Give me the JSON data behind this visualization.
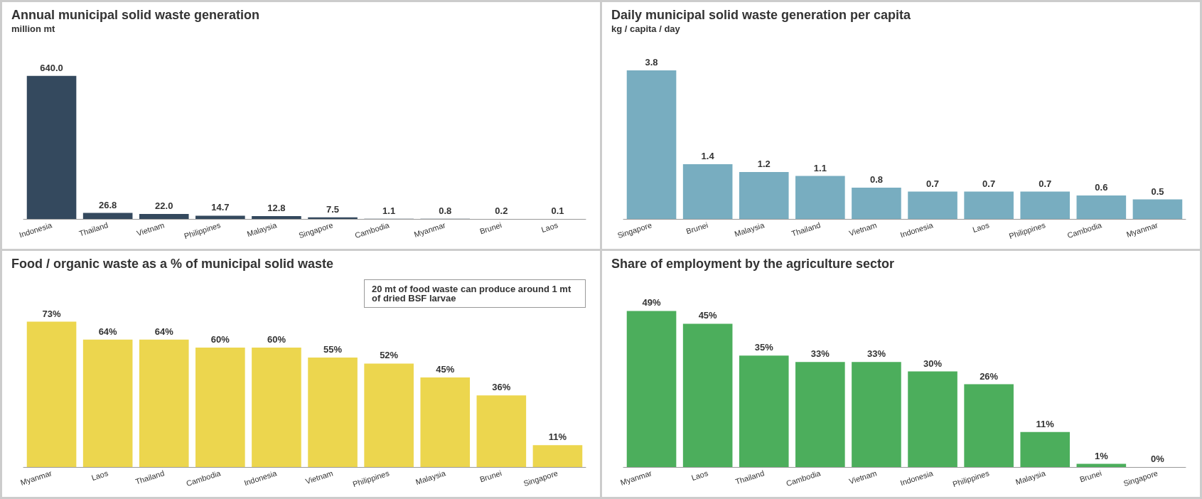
{
  "chart_data": [
    {
      "type": "bar",
      "title": "Annual municipal solid waste generation",
      "subtitle": "million mt",
      "categories": [
        "Indonesia",
        "Thailand",
        "Vietnam",
        "Philippines",
        "Malaysia",
        "Singapore",
        "Cambodia",
        "Myanmar",
        "Brunei",
        "Laos"
      ],
      "values": [
        640.0,
        26.8,
        22.0,
        14.7,
        12.8,
        7.5,
        1.1,
        0.8,
        0.2,
        0.1
      ],
      "value_labels": [
        "640.0",
        "26.8",
        "22.0",
        "14.7",
        "12.8",
        "7.5",
        "1.1",
        "0.8",
        "0.2",
        "0.1"
      ],
      "color": "#34495e"
    },
    {
      "type": "bar",
      "title": "Daily municipal solid waste generation per capita",
      "subtitle": "kg / capita / day",
      "categories": [
        "Singapore",
        "Brunei",
        "Malaysia",
        "Thailand",
        "Vietnam",
        "Indonesia",
        "Laos",
        "Philippines",
        "Cambodia",
        "Myanmar"
      ],
      "values": [
        3.8,
        1.4,
        1.2,
        1.1,
        0.8,
        0.7,
        0.7,
        0.7,
        0.6,
        0.5
      ],
      "data_labels": true,
      "color": "#78adc0"
    },
    {
      "type": "bar",
      "title": "Food / organic waste as a % of municipal solid waste",
      "categories": [
        "Myanmar",
        "Laos",
        "Thailand",
        "Cambodia",
        "Indonesia",
        "Vietnam",
        "Philippines",
        "Malaysia",
        "Brunei",
        "Singapore"
      ],
      "values": [
        73,
        64,
        64,
        60,
        60,
        55,
        52,
        45,
        36,
        11
      ],
      "value_labels": [
        "73%",
        "64%",
        "64%",
        "60%",
        "60%",
        "55%",
        "52%",
        "45%",
        "36%",
        "11%"
      ],
      "color": "#ecd64e",
      "annotations": [
        "20 mt of food waste can produce around 1 mt of dried BSF larvae"
      ]
    },
    {
      "type": "bar",
      "title": "Share of employment by the agriculture sector",
      "categories": [
        "Myanmar",
        "Laos",
        "Thailand",
        "Cambodia",
        "Vietnam",
        "Indonesia",
        "Philippines",
        "Malaysia",
        "Brunei",
        "Singapore"
      ],
      "values": [
        49,
        45,
        35,
        33,
        33,
        30,
        26,
        11,
        1,
        0
      ],
      "value_labels": [
        "49%",
        "45%",
        "35%",
        "33%",
        "33%",
        "30%",
        "26%",
        "11%",
        "1%",
        "0%"
      ],
      "color": "#4cae5c"
    }
  ]
}
